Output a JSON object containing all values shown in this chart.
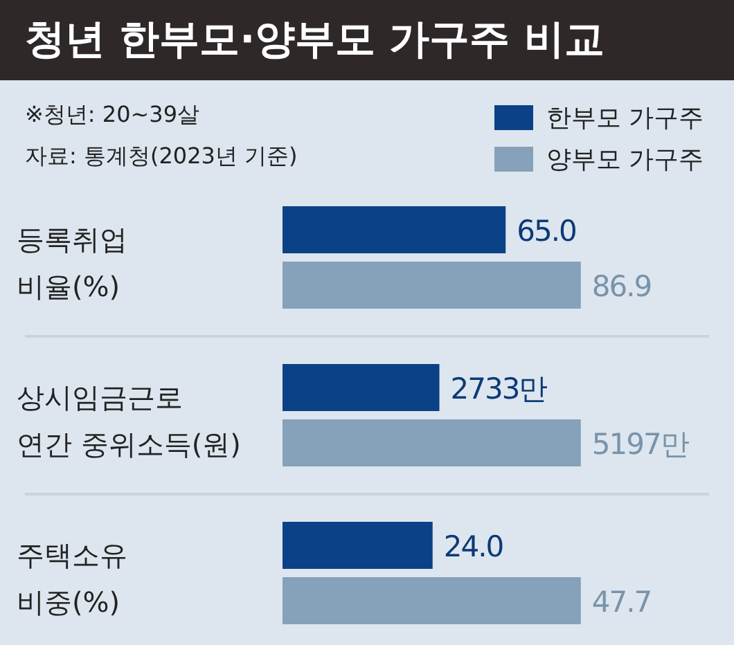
{
  "chart_data": [
    {
      "type": "bar",
      "orientation": "horizontal",
      "title": "청년 한부모·양부모 가구주 비교",
      "annotations": [
        "※청년: 20~39살",
        "자료: 통계청(2023년 기준)"
      ],
      "legend": "top right",
      "categories": [
        "등록취업 비율(%)"
      ],
      "tick_labels": false,
      "series": [
        {
          "name": "한부모 가구주",
          "color": "#0b4187",
          "values": [
            65.0
          ],
          "value_labels": [
            "65.0"
          ]
        },
        {
          "name": "양부모 가구주",
          "color": "#86a1ba",
          "values": [
            86.9
          ],
          "value_labels": [
            "86.9"
          ]
        }
      ]
    },
    {
      "type": "bar",
      "orientation": "horizontal",
      "categories": [
        "상시임금근로 연간 중위소득(원)"
      ],
      "tick_labels": false,
      "series": [
        {
          "color": "#0b4187",
          "values": [
            2733
          ],
          "value_labels": [
            "2733만"
          ]
        },
        {
          "color": "#86a1ba",
          "values": [
            5197
          ],
          "value_labels": [
            "5197만"
          ]
        }
      ]
    },
    {
      "type": "bar",
      "orientation": "horizontal",
      "categories": [
        "주택소유 비중(%)"
      ],
      "tick_labels": false,
      "series": [
        {
          "color": "#0b4187",
          "values": [
            24.0
          ],
          "value_labels": [
            "24.0"
          ]
        },
        {
          "color": "#86a1ba",
          "values": [
            47.7
          ],
          "value_labels": [
            "47.7"
          ]
        }
      ]
    }
  ]
}
